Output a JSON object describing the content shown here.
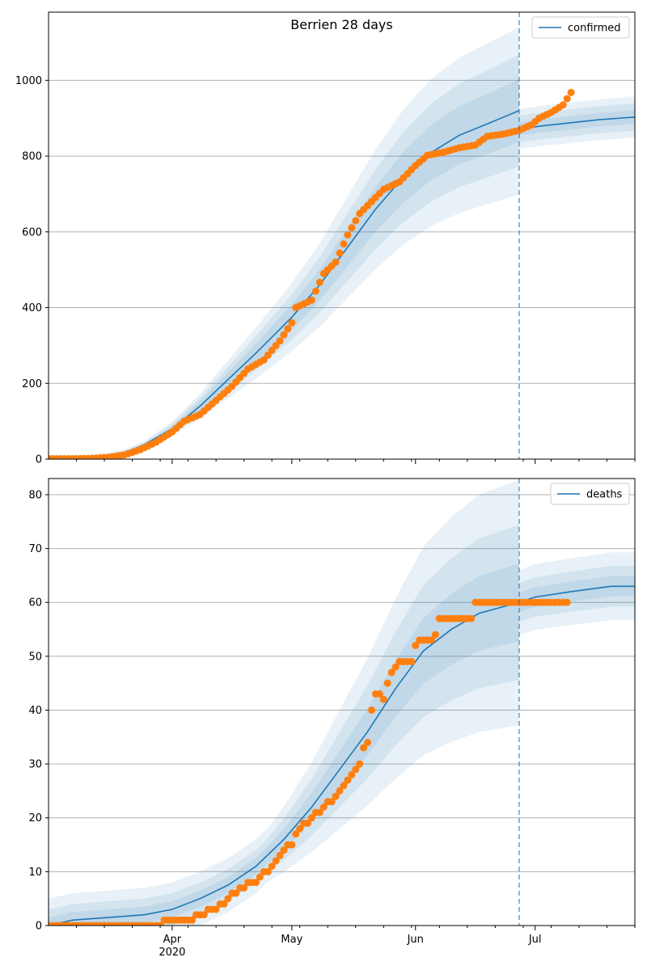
{
  "colors": {
    "model": "#1f77b4",
    "observed": "#ff7f0e",
    "grid": "#b0b0b0",
    "band": "#1f77b4"
  },
  "chart_data": [
    {
      "type": "line",
      "title": "Berrien 28 days",
      "legend": {
        "entries": [
          "confirmed"
        ],
        "placement": "top-right"
      },
      "grid": {
        "y": true,
        "x": false
      },
      "xlim": [
        "2020-03-01",
        "2020-07-26"
      ],
      "ylim": [
        0,
        1180
      ],
      "yticks": [
        0,
        200,
        400,
        600,
        800,
        1000
      ],
      "xticks": [
        {
          "date": "2020-04-01",
          "label": "Apr",
          "sublabel": "2020"
        },
        {
          "date": "2020-05-01",
          "label": "May"
        },
        {
          "date": "2020-06-01",
          "label": "Jun"
        },
        {
          "date": "2020-07-01",
          "label": "Jul"
        }
      ],
      "forecast_start": "2020-06-27",
      "series": [
        {
          "name": "confirmed",
          "kind": "model",
          "points": [
            [
              "2020-03-01",
              0
            ],
            [
              "2020-03-10",
              1
            ],
            [
              "2020-03-15",
              5
            ],
            [
              "2020-03-20",
              16
            ],
            [
              "2020-03-25",
              38
            ],
            [
              "2020-04-01",
              80
            ],
            [
              "2020-04-08",
              140
            ],
            [
              "2020-04-15",
              210
            ],
            [
              "2020-04-22",
              280
            ],
            [
              "2020-05-01",
              375
            ],
            [
              "2020-05-08",
              460
            ],
            [
              "2020-05-15",
              560
            ],
            [
              "2020-05-22",
              660
            ],
            [
              "2020-05-29",
              745
            ],
            [
              "2020-06-05",
              810
            ],
            [
              "2020-06-12",
              855
            ],
            [
              "2020-06-19",
              885
            ],
            [
              "2020-06-27",
              920
            ]
          ]
        },
        {
          "kind": "model-forecast",
          "points": [
            [
              "2020-06-27",
              872
            ],
            [
              "2020-07-03",
              880
            ],
            [
              "2020-07-10",
              888
            ],
            [
              "2020-07-17",
              896
            ],
            [
              "2020-07-26",
              903
            ]
          ]
        },
        {
          "kind": "observed",
          "points": [
            [
              "2020-03-01",
              1
            ],
            [
              "2020-03-08",
              1
            ],
            [
              "2020-03-12",
              2
            ],
            [
              "2020-03-16",
              5
            ],
            [
              "2020-03-20",
              11
            ],
            [
              "2020-03-24",
              25
            ],
            [
              "2020-03-28",
              45
            ],
            [
              "2020-04-01",
              72
            ],
            [
              "2020-04-04",
              100
            ],
            [
              "2020-04-08",
              118
            ],
            [
              "2020-04-12",
              155
            ],
            [
              "2020-04-16",
              192
            ],
            [
              "2020-04-20",
              238
            ],
            [
              "2020-04-24",
              262
            ],
            [
              "2020-04-28",
              312
            ],
            [
              "2020-05-01",
              360
            ],
            [
              "2020-05-02",
              400
            ],
            [
              "2020-05-06",
              420
            ],
            [
              "2020-05-09",
              490
            ],
            [
              "2020-05-12",
              520
            ],
            [
              "2020-05-15",
              592
            ],
            [
              "2020-05-18",
              648
            ],
            [
              "2020-05-21",
              680
            ],
            [
              "2020-05-24",
              712
            ],
            [
              "2020-05-28",
              732
            ],
            [
              "2020-06-01",
              775
            ],
            [
              "2020-06-04",
              802
            ],
            [
              "2020-06-08",
              810
            ],
            [
              "2020-06-12",
              822
            ],
            [
              "2020-06-16",
              829
            ],
            [
              "2020-06-19",
              852
            ],
            [
              "2020-06-23",
              858
            ],
            [
              "2020-06-27",
              868
            ],
            [
              "2020-06-30",
              882
            ],
            [
              "2020-07-02",
              900
            ],
            [
              "2020-07-05",
              915
            ],
            [
              "2020-07-08",
              935
            ],
            [
              "2020-07-10",
              968
            ]
          ]
        }
      ]
    },
    {
      "type": "line",
      "title": "",
      "legend": {
        "entries": [
          "deaths"
        ],
        "placement": "top-right"
      },
      "grid": {
        "y": true,
        "x": false
      },
      "xlim": [
        "2020-03-01",
        "2020-07-26"
      ],
      "ylim": [
        0,
        83
      ],
      "yticks": [
        0,
        10,
        20,
        30,
        40,
        50,
        60,
        70,
        80
      ],
      "xticks": [
        {
          "date": "2020-04-01",
          "label": "Apr",
          "sublabel": "2020"
        },
        {
          "date": "2020-05-01",
          "label": "May"
        },
        {
          "date": "2020-06-01",
          "label": "Jun"
        },
        {
          "date": "2020-07-01",
          "label": "Jul"
        }
      ],
      "forecast_start": "2020-06-27",
      "series": [
        {
          "name": "deaths",
          "kind": "model",
          "points": [
            [
              "2020-03-01",
              0
            ],
            [
              "2020-03-07",
              1
            ],
            [
              "2020-03-25",
              2
            ],
            [
              "2020-04-01",
              3
            ],
            [
              "2020-04-08",
              5
            ],
            [
              "2020-04-15",
              7.5
            ],
            [
              "2020-04-22",
              11
            ],
            [
              "2020-04-29",
              16
            ],
            [
              "2020-05-06",
              22
            ],
            [
              "2020-05-13",
              29
            ],
            [
              "2020-05-20",
              36
            ],
            [
              "2020-05-27",
              44
            ],
            [
              "2020-06-03",
              51
            ],
            [
              "2020-06-10",
              55
            ],
            [
              "2020-06-17",
              58
            ],
            [
              "2020-06-27",
              60
            ]
          ]
        },
        {
          "kind": "model-forecast",
          "points": [
            [
              "2020-06-27",
              60
            ],
            [
              "2020-07-01",
              61
            ],
            [
              "2020-07-10",
              62
            ],
            [
              "2020-07-20",
              63
            ],
            [
              "2020-07-26",
              63
            ]
          ]
        },
        {
          "kind": "observed",
          "points": [
            [
              "2020-03-01",
              0
            ],
            [
              "2020-03-15",
              0
            ],
            [
              "2020-03-28",
              0
            ],
            [
              "2020-04-01",
              1
            ],
            [
              "2020-04-06",
              1
            ],
            [
              "2020-04-08",
              2
            ],
            [
              "2020-04-12",
              3
            ],
            [
              "2020-04-15",
              5
            ],
            [
              "2020-04-18",
              7
            ],
            [
              "2020-04-22",
              8
            ],
            [
              "2020-04-26",
              11
            ],
            [
              "2020-04-29",
              14
            ],
            [
              "2020-05-01",
              15
            ],
            [
              "2020-05-03",
              18
            ],
            [
              "2020-05-06",
              20
            ],
            [
              "2020-05-09",
              22
            ],
            [
              "2020-05-12",
              24
            ],
            [
              "2020-05-15",
              27
            ],
            [
              "2020-05-17",
              29
            ],
            [
              "2020-05-18",
              30
            ],
            [
              "2020-05-19",
              33
            ],
            [
              "2020-05-20",
              34
            ],
            [
              "2020-05-21",
              40
            ],
            [
              "2020-05-22",
              43
            ],
            [
              "2020-05-24",
              42
            ],
            [
              "2020-05-26",
              47
            ],
            [
              "2020-05-28",
              49
            ],
            [
              "2020-05-31",
              49
            ],
            [
              "2020-06-01",
              52
            ],
            [
              "2020-06-02",
              53
            ],
            [
              "2020-06-05",
              53
            ],
            [
              "2020-06-06",
              54
            ],
            [
              "2020-06-07",
              57
            ],
            [
              "2020-06-15",
              57
            ],
            [
              "2020-06-16",
              60
            ],
            [
              "2020-06-27",
              60
            ],
            [
              "2020-07-09",
              60
            ]
          ]
        }
      ]
    }
  ]
}
